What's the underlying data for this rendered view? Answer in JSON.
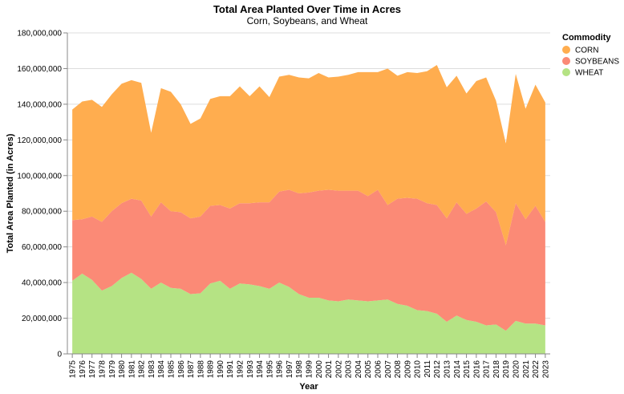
{
  "chart_data": {
    "type": "area",
    "stacked": true,
    "title": "Total Area Planted Over Time in Acres",
    "subtitle": "Corn, Soybeans, and Wheat",
    "xlabel": "Year",
    "ylabel": "Total Area Planted (in Acres)",
    "ylim": [
      0,
      180000000
    ],
    "yticks": [
      "0",
      "20,000,000",
      "40,000,000",
      "60,000,000",
      "80,000,000",
      "100,000,000",
      "120,000,000",
      "140,000,000",
      "160,000,000",
      "180,000,000"
    ],
    "grid": true,
    "legend": {
      "title": "Commodity",
      "position": "right"
    },
    "x": [
      "1975",
      "1976",
      "1977",
      "1978",
      "1979",
      "1980",
      "1981",
      "1982",
      "1983",
      "1984",
      "1985",
      "1986",
      "1987",
      "1988",
      "1989",
      "1990",
      "1991",
      "1992",
      "1993",
      "1994",
      "1995",
      "1996",
      "1997",
      "1998",
      "1999",
      "2000",
      "2001",
      "2002",
      "2003",
      "2004",
      "2005",
      "2006",
      "2007",
      "2008",
      "2009",
      "2010",
      "2011",
      "2012",
      "2013",
      "2014",
      "2015",
      "2016",
      "2017",
      "2018",
      "2019",
      "2020",
      "2021",
      "2022",
      "2023"
    ],
    "series": [
      {
        "name": "WHEAT",
        "color": "#b5e384",
        "values": [
          41000000,
          45000000,
          41500000,
          35500000,
          38000000,
          42500000,
          45500000,
          42000000,
          36500000,
          40000000,
          37000000,
          36500000,
          33500000,
          34000000,
          39500000,
          41000000,
          36500000,
          39500000,
          39000000,
          38000000,
          36500000,
          40000000,
          37500000,
          33500000,
          31500000,
          31500000,
          30000000,
          29500000,
          30500000,
          30000000,
          29500000,
          30000000,
          30500000,
          28000000,
          27000000,
          24500000,
          24000000,
          22500000,
          18000000,
          21500000,
          19000000,
          18000000,
          16000000,
          16500000,
          13000000,
          18500000,
          17000000,
          17000000,
          16000000
        ]
      },
      {
        "name": "SOYBEANS",
        "color": "#fb8a76",
        "values": [
          34000000,
          30500000,
          35500000,
          38500000,
          42000000,
          42000000,
          41500000,
          44000000,
          40500000,
          45000000,
          43000000,
          43000000,
          42500000,
          43000000,
          43500000,
          42500000,
          45000000,
          45000000,
          45500000,
          47000000,
          48500000,
          51000000,
          54500000,
          56500000,
          59000000,
          60000000,
          62000000,
          62000000,
          61000000,
          61500000,
          59000000,
          62000000,
          53000000,
          59000000,
          60500000,
          62500000,
          60500000,
          61000000,
          58000000,
          63500000,
          59500000,
          63500000,
          69500000,
          63000000,
          48000000,
          66000000,
          58500000,
          66000000,
          58000000
        ]
      },
      {
        "name": "CORN",
        "color": "#ffad4f",
        "values": [
          62000000,
          66000000,
          65500000,
          64500000,
          65500000,
          67000000,
          66500000,
          66000000,
          47000000,
          64000000,
          67000000,
          60500000,
          53000000,
          55000000,
          60000000,
          61000000,
          63000000,
          65500000,
          60000000,
          65000000,
          59000000,
          64500000,
          64500000,
          65000000,
          64000000,
          66000000,
          63000000,
          64000000,
          65000000,
          66500000,
          69500000,
          66000000,
          76500000,
          69000000,
          70500000,
          70500000,
          74000000,
          78500000,
          73500000,
          71000000,
          67500000,
          71500000,
          69500000,
          62500000,
          57000000,
          72500000,
          62000000,
          68000000,
          67000000
        ]
      }
    ]
  }
}
